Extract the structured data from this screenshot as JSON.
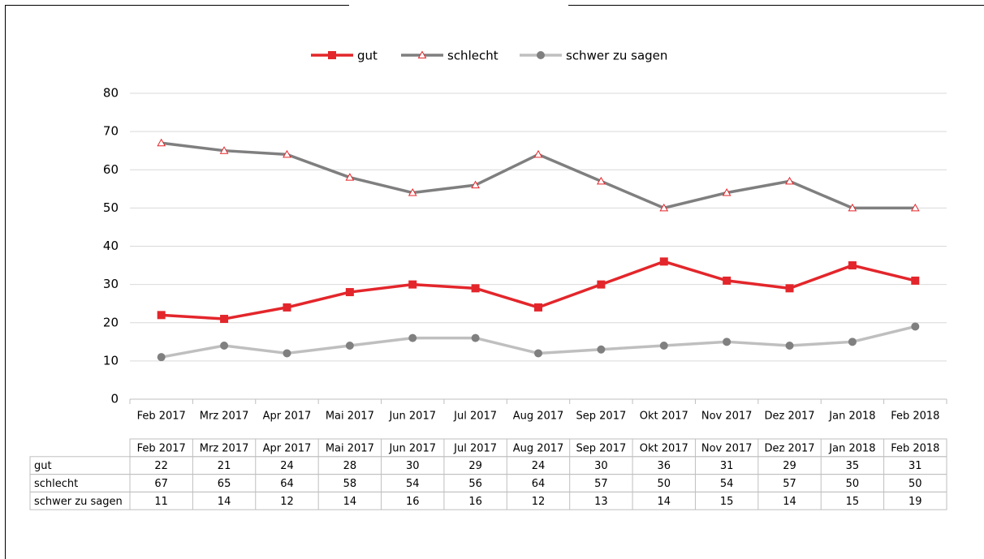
{
  "chart_data": {
    "type": "line",
    "categories": [
      "Feb 2017",
      "Mrz 2017",
      "Apr 2017",
      "Mai 2017",
      "Jun 2017",
      "Jul 2017",
      "Aug 2017",
      "Sep 2017",
      "Okt 2017",
      "Nov 2017",
      "Dez 2017",
      "Jan 2018",
      "Feb 2018"
    ],
    "series": [
      {
        "name": "gut",
        "color": "#e3262b",
        "marker": "square",
        "values": [
          22,
          21,
          24,
          28,
          30,
          29,
          24,
          30,
          36,
          31,
          29,
          35,
          31
        ]
      },
      {
        "name": "schlecht",
        "color": "#7f7f7f",
        "marker": "triangle",
        "values": [
          67,
          65,
          64,
          58,
          54,
          56,
          64,
          57,
          50,
          54,
          57,
          50,
          50
        ]
      },
      {
        "name": "schwer zu sagen",
        "color": "#bfbfbf",
        "marker": "circle",
        "values": [
          11,
          14,
          12,
          14,
          16,
          16,
          12,
          13,
          14,
          15,
          14,
          15,
          19
        ]
      }
    ],
    "ylim": [
      0,
      80
    ],
    "yticks": [
      0,
      10,
      20,
      30,
      40,
      50,
      60,
      70,
      80
    ],
    "grid": true,
    "legend": "top",
    "data_table": true
  }
}
